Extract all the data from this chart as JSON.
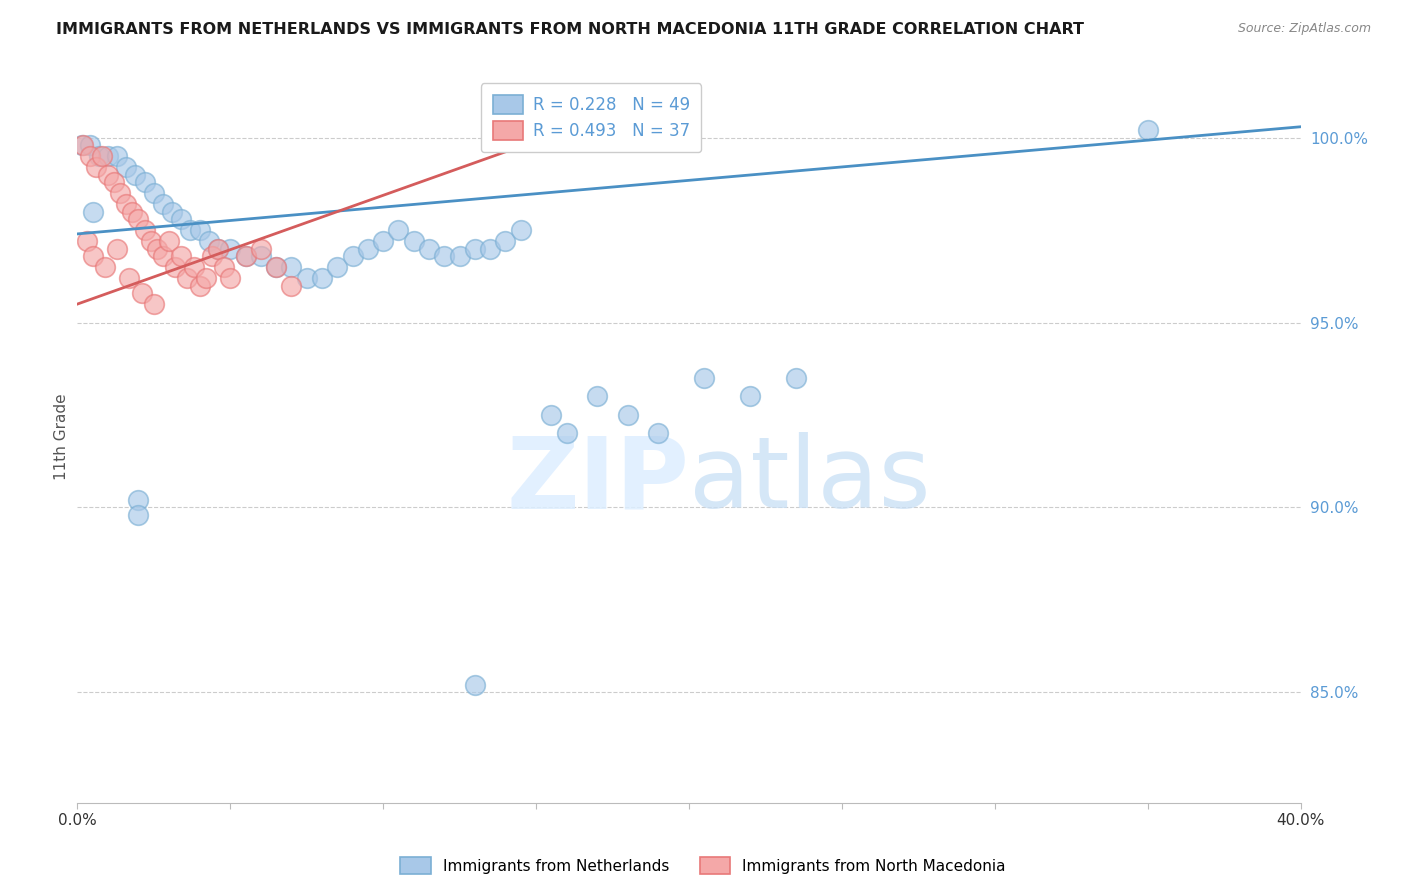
{
  "title": "IMMIGRANTS FROM NETHERLANDS VS IMMIGRANTS FROM NORTH MACEDONIA 11TH GRADE CORRELATION CHART",
  "source": "Source: ZipAtlas.com",
  "ylabel": "11th Grade",
  "xlim": [
    0.0,
    40.0
  ],
  "ylim": [
    82.0,
    101.8
  ],
  "yticks": [
    85.0,
    90.0,
    95.0,
    100.0
  ],
  "ytick_labels": [
    "85.0%",
    "90.0%",
    "95.0%",
    "100.0%"
  ],
  "xticks": [
    0.0,
    5.0,
    10.0,
    15.0,
    20.0,
    25.0,
    30.0,
    35.0,
    40.0
  ],
  "legend_r1": "R = 0.228",
  "legend_n1": "N = 49",
  "legend_r2": "R = 0.493",
  "legend_n2": "N = 37",
  "blue_color": "#a8c8e8",
  "pink_color": "#f4a8a8",
  "blue_edge_color": "#7bafd4",
  "pink_edge_color": "#e87878",
  "blue_line_color": "#4a90c4",
  "pink_line_color": "#d45c5c",
  "right_axis_color": "#5b9bd5",
  "watermark_color": "#ddeeff",
  "netherlands_x": [
    0.15,
    0.4,
    0.7,
    1.0,
    1.3,
    1.6,
    1.9,
    2.2,
    2.5,
    2.8,
    3.1,
    3.4,
    3.7,
    4.0,
    4.3,
    4.6,
    5.0,
    5.5,
    6.0,
    6.5,
    7.0,
    7.5,
    8.0,
    8.5,
    9.0,
    9.5,
    10.0,
    10.5,
    11.0,
    11.5,
    12.0,
    12.5,
    13.0,
    13.5,
    14.0,
    14.5,
    15.5,
    16.0,
    17.0,
    18.0,
    19.0,
    20.5,
    22.0,
    23.5,
    35.0,
    2.0,
    2.0,
    13.0,
    0.5
  ],
  "netherlands_y": [
    99.8,
    99.8,
    99.5,
    99.5,
    99.5,
    99.2,
    99.0,
    98.8,
    98.5,
    98.2,
    98.0,
    97.8,
    97.5,
    97.5,
    97.2,
    97.0,
    97.0,
    96.8,
    96.8,
    96.5,
    96.5,
    96.2,
    96.2,
    96.5,
    96.8,
    97.0,
    97.2,
    97.5,
    97.2,
    97.0,
    96.8,
    96.8,
    97.0,
    97.0,
    97.2,
    97.5,
    92.5,
    92.0,
    93.0,
    92.5,
    92.0,
    93.5,
    93.0,
    93.5,
    100.2,
    90.2,
    89.8,
    85.2,
    98.0
  ],
  "netherlands_y_trend_x": [
    0.0,
    40.0
  ],
  "netherlands_y_trend_y": [
    97.4,
    100.3
  ],
  "macedonia_x": [
    0.2,
    0.4,
    0.6,
    0.8,
    1.0,
    1.2,
    1.4,
    1.6,
    1.8,
    2.0,
    2.2,
    2.4,
    2.6,
    2.8,
    3.0,
    3.2,
    3.4,
    3.6,
    3.8,
    4.0,
    4.2,
    4.4,
    4.6,
    4.8,
    5.0,
    5.5,
    6.0,
    6.5,
    7.0,
    0.3,
    0.5,
    0.9,
    1.3,
    1.7,
    2.1,
    2.5,
    15.5
  ],
  "macedonia_y": [
    99.8,
    99.5,
    99.2,
    99.5,
    99.0,
    98.8,
    98.5,
    98.2,
    98.0,
    97.8,
    97.5,
    97.2,
    97.0,
    96.8,
    97.2,
    96.5,
    96.8,
    96.2,
    96.5,
    96.0,
    96.2,
    96.8,
    97.0,
    96.5,
    96.2,
    96.8,
    97.0,
    96.5,
    96.0,
    97.2,
    96.8,
    96.5,
    97.0,
    96.2,
    95.8,
    95.5,
    100.2
  ],
  "macedonia_y_trend_x": [
    0.0,
    18.0
  ],
  "macedonia_y_trend_y": [
    95.5,
    100.8
  ]
}
